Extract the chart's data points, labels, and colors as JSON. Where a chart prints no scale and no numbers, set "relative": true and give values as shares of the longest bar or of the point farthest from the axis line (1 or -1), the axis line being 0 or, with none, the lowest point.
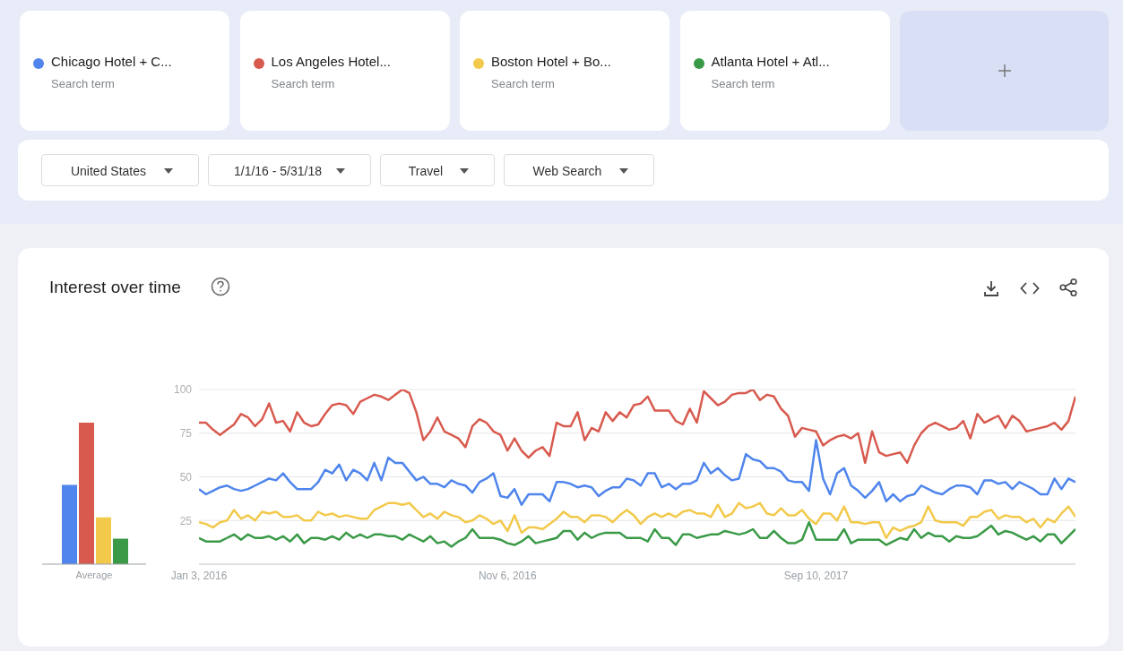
{
  "chart_data": [
    {
      "type": "line",
      "title": "Interest over time",
      "annotations": [
        "Search term",
        "Search term",
        "Search term",
        "Search term",
        "United States",
        "1/1/16 - 5/31/18",
        "Travel",
        "Web Search"
      ],
      "x": [
        "2016-01-03",
        "2016-01-10",
        "2016-01-17",
        "2016-01-24",
        "2016-01-31",
        "2016-02-07",
        "2016-02-14",
        "2016-02-21",
        "2016-02-28",
        "2016-03-06",
        "2016-03-13",
        "2016-03-20",
        "2016-03-27",
        "2016-04-03",
        "2016-04-10",
        "2016-04-17",
        "2016-04-24",
        "2016-05-01",
        "2016-05-08",
        "2016-05-15",
        "2016-05-22",
        "2016-05-29",
        "2016-06-05",
        "2016-06-12",
        "2016-06-19",
        "2016-06-26",
        "2016-07-03",
        "2016-07-10",
        "2016-07-17",
        "2016-07-24",
        "2016-07-31",
        "2016-08-07",
        "2016-08-14",
        "2016-08-21",
        "2016-08-28",
        "2016-09-04",
        "2016-09-11",
        "2016-09-18",
        "2016-09-25",
        "2016-10-02",
        "2016-10-09",
        "2016-10-16",
        "2016-10-23",
        "2016-10-30",
        "2016-11-06",
        "2016-11-13",
        "2016-11-20",
        "2016-11-27",
        "2016-12-04",
        "2016-12-11",
        "2016-12-18",
        "2016-12-25",
        "2017-01-01",
        "2017-01-08",
        "2017-01-15",
        "2017-01-22",
        "2017-01-29",
        "2017-02-05",
        "2017-02-12",
        "2017-02-19",
        "2017-02-26",
        "2017-03-05",
        "2017-03-12",
        "2017-03-19",
        "2017-03-26",
        "2017-04-02",
        "2017-04-09",
        "2017-04-16",
        "2017-04-23",
        "2017-04-30",
        "2017-05-07",
        "2017-05-14",
        "2017-05-21",
        "2017-05-28",
        "2017-06-04",
        "2017-06-11",
        "2017-06-18",
        "2017-06-25",
        "2017-07-02",
        "2017-07-09",
        "2017-07-16",
        "2017-07-23",
        "2017-07-30",
        "2017-08-06",
        "2017-08-13",
        "2017-08-20",
        "2017-08-27",
        "2017-09-03",
        "2017-09-10",
        "2017-09-17",
        "2017-09-24",
        "2017-10-01",
        "2017-10-08",
        "2017-10-15",
        "2017-10-22",
        "2017-10-29",
        "2017-11-05",
        "2017-11-12",
        "2017-11-19",
        "2017-11-26",
        "2017-12-03",
        "2017-12-10",
        "2017-12-17",
        "2017-12-24",
        "2017-12-31",
        "2018-01-07",
        "2018-01-14",
        "2018-01-21",
        "2018-01-28",
        "2018-02-04",
        "2018-02-11",
        "2018-02-18",
        "2018-02-25",
        "2018-03-04",
        "2018-03-11",
        "2018-03-18",
        "2018-03-25",
        "2018-04-01",
        "2018-04-08",
        "2018-04-15",
        "2018-04-22",
        "2018-04-29",
        "2018-05-06",
        "2018-05-13",
        "2018-05-20",
        "2018-05-27"
      ],
      "series": [
        {
          "name": "Chicago Hotel + C...",
          "color": "#4f85ec",
          "values": [
            43,
            40,
            42,
            44,
            45,
            43,
            42,
            43,
            45,
            47,
            49,
            48,
            52,
            47,
            43,
            43,
            43,
            47,
            54,
            52,
            57,
            48,
            54,
            52,
            48,
            58,
            48,
            61,
            58,
            58,
            53,
            48,
            50,
            46,
            46,
            44,
            48,
            46,
            45,
            41,
            47,
            49,
            52,
            39,
            38,
            43,
            34,
            40,
            40,
            40,
            36,
            47,
            47,
            46,
            44,
            45,
            44,
            39,
            42,
            44,
            44,
            49,
            48,
            45,
            52,
            52,
            44,
            46,
            43,
            46,
            46,
            48,
            58,
            52,
            55,
            51,
            48,
            49,
            63,
            60,
            59,
            55,
            55,
            53,
            48,
            47,
            47,
            42,
            71,
            49,
            40,
            52,
            55,
            45,
            42,
            38,
            42,
            47,
            36,
            40,
            36,
            39,
            40,
            45,
            43,
            41,
            40,
            43,
            45,
            45,
            44,
            40,
            48,
            48,
            46,
            47,
            43,
            47,
            45,
            43,
            40,
            40,
            49,
            43,
            49,
            47
          ]
        },
        {
          "name": "Los Angeles Hotel...",
          "color": "#d85a4e",
          "values": [
            81,
            81,
            77,
            74,
            77,
            80,
            86,
            84,
            79,
            83,
            92,
            81,
            82,
            76,
            87,
            81,
            79,
            80,
            86,
            91,
            92,
            91,
            86,
            93,
            95,
            97,
            96,
            94,
            97,
            100,
            98,
            87,
            71,
            76,
            84,
            76,
            74,
            72,
            67,
            79,
            83,
            81,
            76,
            74,
            65,
            72,
            65,
            61,
            65,
            67,
            62,
            81,
            79,
            79,
            87,
            71,
            78,
            76,
            87,
            82,
            87,
            84,
            91,
            92,
            96,
            88,
            88,
            88,
            82,
            80,
            89,
            81,
            99,
            95,
            91,
            93,
            97,
            98,
            98,
            100,
            94,
            97,
            96,
            89,
            85,
            73,
            78,
            77,
            76,
            68,
            71,
            73,
            74,
            72,
            75,
            58,
            76,
            64,
            62,
            63,
            64,
            58,
            68,
            75,
            79,
            81,
            79,
            77,
            78,
            82,
            72,
            86,
            81,
            83,
            85,
            78,
            85,
            82,
            76,
            77,
            78,
            79,
            81,
            77,
            82,
            96
          ]
        },
        {
          "name": "Boston Hotel + Bo...",
          "color": "#f2c94a",
          "values": [
            24,
            23,
            21,
            24,
            25,
            31,
            26,
            28,
            25,
            30,
            29,
            30,
            27,
            27,
            28,
            25,
            25,
            30,
            28,
            29,
            27,
            28,
            27,
            26,
            26,
            31,
            33,
            35,
            35,
            34,
            35,
            31,
            27,
            29,
            26,
            30,
            28,
            27,
            24,
            25,
            28,
            26,
            23,
            25,
            19,
            28,
            18,
            21,
            21,
            20,
            23,
            26,
            30,
            27,
            27,
            24,
            28,
            28,
            27,
            24,
            28,
            31,
            28,
            23,
            27,
            29,
            27,
            29,
            27,
            30,
            31,
            29,
            29,
            27,
            34,
            27,
            29,
            35,
            32,
            33,
            35,
            29,
            28,
            32,
            28,
            28,
            31,
            26,
            23,
            29,
            29,
            25,
            33,
            24,
            24,
            23,
            24,
            24,
            15,
            21,
            19,
            21,
            22,
            24,
            33,
            25,
            24,
            24,
            24,
            22,
            27,
            27,
            30,
            31,
            26,
            28,
            27,
            27,
            24,
            26,
            21,
            26,
            24,
            29,
            33,
            27
          ]
        },
        {
          "name": "Atlanta Hotel + Atl...",
          "color": "#3a9a47",
          "values": [
            15,
            13,
            13,
            13,
            15,
            17,
            14,
            17,
            15,
            15,
            16,
            14,
            16,
            13,
            17,
            12,
            15,
            15,
            14,
            16,
            14,
            18,
            15,
            17,
            15,
            17,
            17,
            16,
            16,
            14,
            17,
            15,
            13,
            16,
            12,
            13,
            10,
            13,
            15,
            20,
            15,
            15,
            15,
            14,
            12,
            11,
            13,
            16,
            12,
            13,
            14,
            15,
            19,
            19,
            14,
            18,
            15,
            17,
            18,
            18,
            18,
            15,
            15,
            15,
            13,
            20,
            15,
            15,
            11,
            17,
            17,
            15,
            16,
            17,
            17,
            19,
            18,
            17,
            18,
            20,
            15,
            15,
            19,
            15,
            12,
            12,
            14,
            24,
            14,
            14,
            14,
            14,
            20,
            12,
            14,
            14,
            14,
            14,
            11,
            13,
            15,
            14,
            20,
            15,
            18,
            16,
            16,
            13,
            16,
            15,
            15,
            16,
            19,
            22,
            17,
            19,
            18,
            16,
            14,
            16,
            13,
            17,
            17,
            12,
            16,
            20
          ]
        }
      ],
      "xlim": [
        "2016-01-03",
        "2018-05-27"
      ],
      "xticks": [
        {
          "value": "2016-01-03",
          "label": "Jan 3, 2016"
        },
        {
          "value": "2016-11-06",
          "label": "Nov 6, 2016"
        },
        {
          "value": "2017-09-10",
          "label": "Sep 10, 2017"
        }
      ],
      "ylim": [
        0,
        100
      ],
      "yticks": [
        25,
        50,
        75,
        100
      ],
      "grid": "y",
      "legend": "top",
      "marker": "none",
      "line_style": "solid"
    },
    {
      "type": "bar",
      "relative": true,
      "categories": [
        "Average"
      ],
      "series": [
        {
          "color": "#4f85ec",
          "values": [
            0.56
          ]
        },
        {
          "color": "#d85a4e",
          "values": [
            1
          ]
        },
        {
          "color": "#f2c94a",
          "values": [
            0.33
          ]
        },
        {
          "color": "#3a9a47",
          "values": [
            0.18
          ]
        }
      ]
    }
  ]
}
